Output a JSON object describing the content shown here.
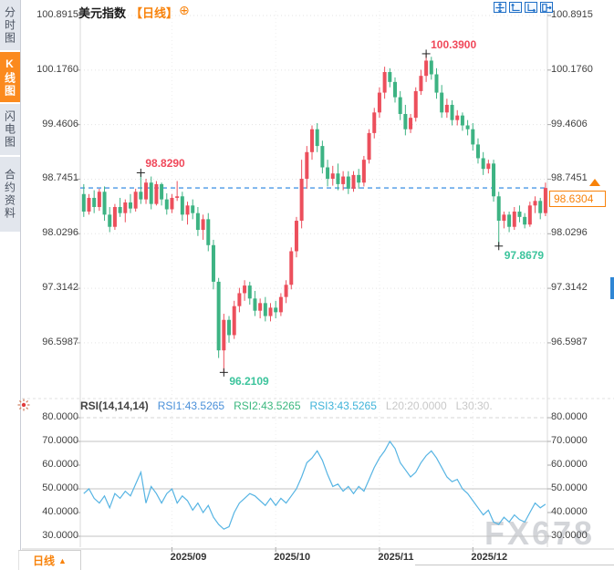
{
  "sidebar": {
    "items": [
      {
        "label": "分时图",
        "active": false
      },
      {
        "label": "K线图",
        "active": true
      },
      {
        "label": "闪电图",
        "active": false
      },
      {
        "label": "合约资料",
        "active": false
      }
    ]
  },
  "header": {
    "title": "美元指数",
    "timeframe": "【日线】",
    "plus_icon": "⊕",
    "toolbar_icons": [
      "pan-icon",
      "y-axis-scale-icon",
      "x-axis-scale-icon",
      "exit-chart-icon"
    ]
  },
  "colors": {
    "up": "#ec4f5c",
    "down": "#3db383",
    "up_label": "#f0485a",
    "down_label": "#3cc49c",
    "rsi_line": "#56b4e3",
    "price_line": "#2080e0",
    "accent_orange": "#f8820a",
    "icon_blue": "#1d6ec6"
  },
  "chart_data": [
    {
      "type": "candlestick",
      "title": "美元指数",
      "timeframe": "日线",
      "y_ticks": [
        "100.8915",
        "100.1760",
        "99.4606",
        "98.7451",
        "98.0296",
        "97.3142",
        "96.5987"
      ],
      "ylim": [
        96.5987,
        100.8915
      ],
      "current_price": 98.6304,
      "current_price_label": "98.6304",
      "annotations": [
        {
          "index": 11,
          "price": 98.829,
          "text": "98.8290",
          "type": "high"
        },
        {
          "index": 66,
          "price": 100.39,
          "text": "100.3900",
          "type": "high"
        },
        {
          "index": 27,
          "price": 96.2109,
          "text": "96.2109",
          "type": "low"
        },
        {
          "index": 80,
          "price": 97.8679,
          "text": "97.8679",
          "type": "low"
        }
      ],
      "x_ticks": [
        {
          "label": "2025/09",
          "index": 17
        },
        {
          "label": "2025/10",
          "index": 37
        },
        {
          "label": "2025/11",
          "index": 57
        },
        {
          "label": "2025/12",
          "index": 75
        }
      ],
      "candles": [
        [
          98.55,
          98.68,
          98.25,
          98.32
        ],
        [
          98.32,
          98.55,
          98.28,
          98.5
        ],
        [
          98.5,
          98.6,
          98.3,
          98.38
        ],
        [
          98.38,
          98.62,
          98.33,
          98.58
        ],
        [
          98.58,
          98.65,
          98.2,
          98.28
        ],
        [
          98.28,
          98.38,
          98.05,
          98.12
        ],
        [
          98.12,
          98.42,
          98.08,
          98.38
        ],
        [
          98.38,
          98.5,
          98.25,
          98.3
        ],
        [
          98.3,
          98.48,
          98.18,
          98.44
        ],
        [
          98.44,
          98.55,
          98.3,
          98.36
        ],
        [
          98.36,
          98.62,
          98.32,
          98.58
        ],
        [
          98.58,
          98.83,
          98.42,
          98.48
        ],
        [
          98.48,
          98.75,
          98.42,
          98.7
        ],
        [
          98.7,
          98.78,
          98.35,
          98.42
        ],
        [
          98.42,
          98.72,
          98.4,
          98.68
        ],
        [
          98.68,
          98.7,
          98.4,
          98.48
        ],
        [
          98.48,
          98.56,
          98.28,
          98.35
        ],
        [
          98.35,
          98.55,
          98.3,
          98.5
        ],
        [
          98.5,
          98.72,
          98.46,
          98.52
        ],
        [
          98.52,
          98.58,
          98.2,
          98.28
        ],
        [
          98.28,
          98.45,
          98.15,
          98.4
        ],
        [
          98.4,
          98.48,
          98.22,
          98.3
        ],
        [
          98.3,
          98.38,
          98.0,
          98.08
        ],
        [
          98.08,
          98.28,
          97.95,
          98.22
        ],
        [
          98.22,
          98.3,
          97.8,
          97.88
        ],
        [
          97.88,
          97.95,
          97.3,
          97.4
        ],
        [
          97.4,
          97.45,
          96.4,
          96.5
        ],
        [
          96.5,
          96.98,
          96.21,
          96.9
        ],
        [
          96.9,
          96.95,
          96.6,
          96.7
        ],
        [
          96.7,
          97.15,
          96.65,
          97.08
        ],
        [
          97.08,
          97.32,
          97.0,
          97.25
        ],
        [
          97.25,
          97.42,
          97.15,
          97.35
        ],
        [
          97.35,
          97.4,
          97.1,
          97.18
        ],
        [
          97.18,
          97.28,
          96.95,
          97.02
        ],
        [
          97.02,
          97.18,
          96.92,
          97.12
        ],
        [
          97.12,
          97.2,
          96.88,
          96.95
        ],
        [
          96.95,
          97.12,
          96.88,
          97.06
        ],
        [
          97.06,
          97.15,
          96.92,
          97.0
        ],
        [
          97.0,
          97.25,
          96.95,
          97.2
        ],
        [
          97.2,
          97.42,
          97.12,
          97.36
        ],
        [
          97.36,
          97.85,
          97.3,
          97.8
        ],
        [
          97.8,
          98.25,
          97.72,
          98.2
        ],
        [
          98.2,
          99.0,
          98.1,
          98.75
        ],
        [
          98.75,
          99.18,
          98.62,
          99.1
        ],
        [
          99.1,
          99.45,
          99.0,
          99.4
        ],
        [
          99.4,
          99.48,
          99.1,
          99.18
        ],
        [
          99.18,
          99.25,
          98.82,
          98.9
        ],
        [
          98.9,
          99.0,
          98.65,
          98.75
        ],
        [
          98.75,
          98.92,
          98.66,
          98.82
        ],
        [
          98.82,
          98.95,
          98.6,
          98.68
        ],
        [
          98.68,
          98.85,
          98.6,
          98.78
        ],
        [
          98.78,
          98.85,
          98.55,
          98.62
        ],
        [
          98.62,
          98.85,
          98.58,
          98.8
        ],
        [
          98.8,
          98.88,
          98.62,
          98.7
        ],
        [
          98.7,
          99.05,
          98.65,
          99.0
        ],
        [
          99.0,
          99.4,
          98.95,
          99.35
        ],
        [
          99.35,
          99.68,
          99.28,
          99.62
        ],
        [
          99.62,
          99.95,
          99.55,
          99.88
        ],
        [
          99.88,
          100.22,
          99.8,
          100.15
        ],
        [
          100.15,
          100.2,
          99.95,
          100.02
        ],
        [
          100.02,
          100.08,
          99.75,
          99.82
        ],
        [
          99.82,
          99.9,
          99.52,
          99.6
        ],
        [
          99.6,
          99.72,
          99.32,
          99.4
        ],
        [
          99.4,
          99.6,
          99.35,
          99.55
        ],
        [
          99.55,
          99.95,
          99.5,
          99.9
        ],
        [
          99.9,
          100.18,
          99.85,
          100.1
        ],
        [
          100.1,
          100.39,
          100.02,
          100.3
        ],
        [
          100.3,
          100.35,
          100.05,
          100.12
        ],
        [
          100.12,
          100.2,
          99.8,
          99.88
        ],
        [
          99.88,
          99.98,
          99.55,
          99.62
        ],
        [
          99.62,
          99.8,
          99.55,
          99.72
        ],
        [
          99.72,
          99.78,
          99.45,
          99.52
        ],
        [
          99.52,
          99.65,
          99.45,
          99.58
        ],
        [
          99.58,
          99.62,
          99.38,
          99.45
        ],
        [
          99.45,
          99.52,
          99.32,
          99.4
        ],
        [
          99.4,
          99.48,
          99.12,
          99.2
        ],
        [
          99.2,
          99.28,
          98.95,
          99.02
        ],
        [
          99.02,
          99.1,
          98.8,
          98.88
        ],
        [
          98.88,
          99.0,
          98.82,
          98.95
        ],
        [
          98.95,
          99.0,
          98.45,
          98.52
        ],
        [
          98.52,
          98.58,
          97.87,
          98.2
        ],
        [
          98.2,
          98.32,
          98.1,
          98.28
        ],
        [
          98.28,
          98.32,
          98.05,
          98.12
        ],
        [
          98.12,
          98.38,
          98.08,
          98.32
        ],
        [
          98.32,
          98.4,
          98.18,
          98.25
        ],
        [
          98.25,
          98.3,
          98.1,
          98.15
        ],
        [
          98.15,
          98.45,
          98.12,
          98.4
        ],
        [
          98.4,
          98.52,
          98.3,
          98.46
        ],
        [
          98.46,
          98.5,
          98.22,
          98.3
        ],
        [
          98.3,
          98.7,
          98.26,
          98.63
        ]
      ]
    },
    {
      "type": "line",
      "name": "RSI",
      "legend": [
        {
          "text": "RSI(14,14,14)",
          "color": "#444444"
        },
        {
          "text": "RSI1:43.5265",
          "color": "#4a90d9"
        },
        {
          "text": "RSI2:43.5265",
          "color": "#3cb87f"
        },
        {
          "text": "RSI3:43.5265",
          "color": "#3fb3d9"
        },
        {
          "text": "L20:20.0000",
          "color": "#c8c8c8"
        },
        {
          "text": "L30:30.",
          "color": "#c8c8c8"
        }
      ],
      "y_ticks": [
        "80.0000",
        "70.0000",
        "60.0000",
        "50.0000",
        "40.0000",
        "30.0000"
      ],
      "levels": {
        "dashed": [
          80
        ],
        "solid": [
          70,
          50,
          30
        ]
      },
      "values": [
        48,
        50,
        46,
        44,
        47,
        42,
        48,
        46,
        49,
        47,
        52,
        57,
        44,
        51,
        48,
        44,
        48,
        50,
        44,
        47,
        45,
        41,
        44,
        40,
        43,
        38,
        35,
        33,
        34,
        40,
        44,
        46,
        48,
        47,
        45,
        43,
        46,
        43,
        46,
        44,
        47,
        50,
        55,
        61,
        63,
        66,
        62,
        56,
        51,
        52,
        49,
        51,
        48,
        51,
        49,
        54,
        59,
        63,
        66,
        70,
        67,
        61,
        58,
        55,
        57,
        61,
        64,
        66,
        63,
        59,
        55,
        53,
        54,
        50,
        48,
        45,
        42,
        39,
        41,
        36,
        35,
        38,
        36,
        39,
        37,
        36,
        40,
        44,
        42,
        43.5
      ]
    }
  ],
  "bottom_bar": {
    "timeframe_label": "日线",
    "arrow": "▲"
  },
  "watermark": "FX678"
}
